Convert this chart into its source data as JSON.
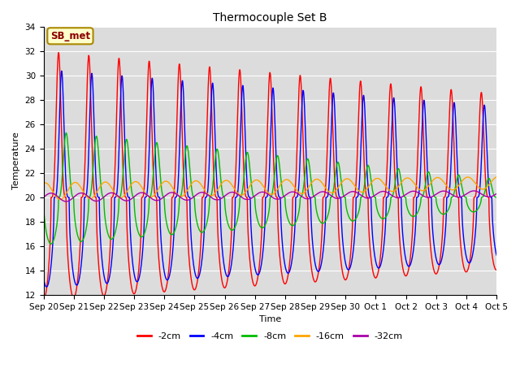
{
  "title": "Thermocouple Set B",
  "xlabel": "Time",
  "ylabel": "Temperature",
  "ylim": [
    12,
    34
  ],
  "annotation": "SB_met",
  "annotation_color": "#8B0000",
  "annotation_bg": "#FFFFCC",
  "annotation_border": "#AA8800",
  "colors": {
    "-2cm": "#FF0000",
    "-4cm": "#0000FF",
    "-8cm": "#00BB00",
    "-16cm": "#FFA500",
    "-32cm": "#AA00AA"
  },
  "legend_labels": [
    "-2cm",
    "-4cm",
    "-8cm",
    "-16cm",
    "-32cm"
  ],
  "background_color": "#DCDCDC",
  "n_days": 15,
  "pts_per_day": 144,
  "base_temp": 20.0
}
